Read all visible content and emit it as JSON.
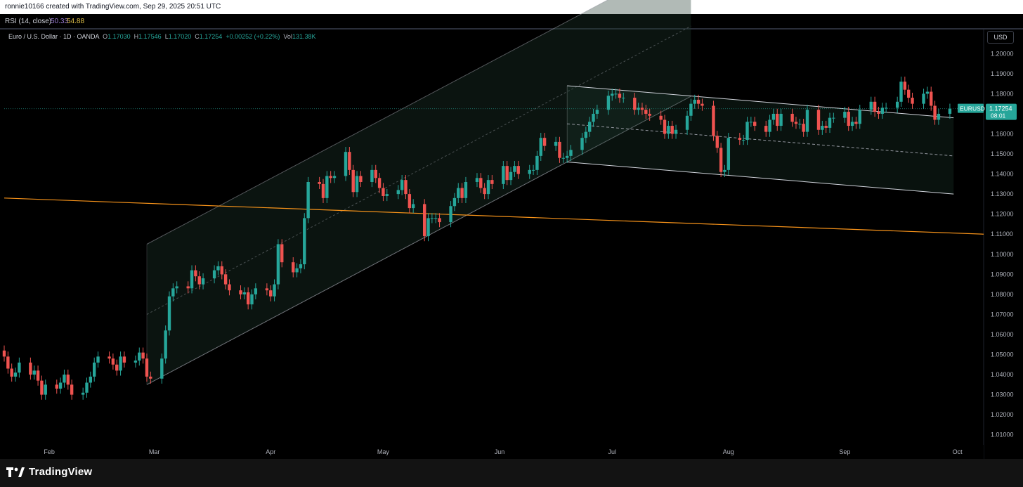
{
  "header": {
    "attribution": "ronnie10166 created with TradingView.com, Sep 29, 2025 20:51 UTC"
  },
  "rsi": {
    "label": "RSI (14, close)",
    "value1": "50.33",
    "value2": "54.88",
    "value1_color": "#9c7dd6",
    "value2_color": "#e2c24a"
  },
  "legend": {
    "symbol": "Euro / U.S. Dollar · 1D · OANDA",
    "o_label": "O",
    "o_value": "1.17030",
    "h_label": "H",
    "h_value": "1.17546",
    "l_label": "L",
    "l_value": "1.17020",
    "c_label": "C",
    "c_value": "1.17254",
    "change": "+0.00252 (+0.22%)",
    "vol_label": "Vol",
    "vol_value": "131.38K"
  },
  "axis": {
    "currency": "USD",
    "symbol_tag": "EURUSD",
    "price_tag": "1.17254",
    "countdown": "08:01"
  },
  "brand": {
    "name": "TradingView"
  },
  "colors": {
    "up": "#26a69a",
    "down": "#ef5350",
    "trendline": "#f7931a",
    "channel": "#9598a1"
  },
  "chart_data": {
    "type": "candlestick",
    "y_axis": {
      "min": 1.005,
      "max": 1.205,
      "ticks": [
        "1.01000",
        "1.02000",
        "1.03000",
        "1.04000",
        "1.05000",
        "1.06000",
        "1.07000",
        "1.08000",
        "1.09000",
        "1.10000",
        "1.11000",
        "1.12000",
        "1.13000",
        "1.14000",
        "1.15000",
        "1.16000",
        "1.17000",
        "1.18000",
        "1.19000",
        "1.20000"
      ]
    },
    "x_axis": {
      "start": "2025-01-20",
      "end": "2025-10-08",
      "ticks": [
        {
          "label": "Feb",
          "date": "2025-02-01"
        },
        {
          "label": "Mar",
          "date": "2025-03-01"
        },
        {
          "label": "Apr",
          "date": "2025-04-01"
        },
        {
          "label": "May",
          "date": "2025-05-01"
        },
        {
          "label": "Jun",
          "date": "2025-06-01"
        },
        {
          "label": "Jul",
          "date": "2025-07-01"
        },
        {
          "label": "Aug",
          "date": "2025-08-01"
        },
        {
          "label": "Sep",
          "date": "2025-09-01"
        },
        {
          "label": "Oct",
          "date": "2025-10-01"
        }
      ]
    },
    "last_close": 1.17254,
    "closes": [
      {
        "date": "2025-01-20",
        "close": 1.049
      },
      {
        "date": "2025-01-21",
        "close": 1.043
      },
      {
        "date": "2025-01-22",
        "close": 1.039
      },
      {
        "date": "2025-01-23",
        "close": 1.041
      },
      {
        "date": "2025-01-24",
        "close": 1.046
      },
      {
        "date": "2025-01-27",
        "close": 1.04
      },
      {
        "date": "2025-01-28",
        "close": 1.042
      },
      {
        "date": "2025-01-29",
        "close": 1.037
      },
      {
        "date": "2025-01-30",
        "close": 1.03
      },
      {
        "date": "2025-01-31",
        "close": 1.035
      },
      {
        "date": "2025-02-03",
        "close": 1.033
      },
      {
        "date": "2025-02-04",
        "close": 1.036
      },
      {
        "date": "2025-02-05",
        "close": 1.04
      },
      {
        "date": "2025-02-06",
        "close": 1.035
      },
      {
        "date": "2025-02-07",
        "close": 1.03
      },
      {
        "date": "2025-02-10",
        "close": 1.031
      },
      {
        "date": "2025-02-11",
        "close": 1.036
      },
      {
        "date": "2025-02-12",
        "close": 1.039
      },
      {
        "date": "2025-02-13",
        "close": 1.046
      },
      {
        "date": "2025-02-14",
        "close": 1.049
      },
      {
        "date": "2025-02-17",
        "close": 1.048
      },
      {
        "date": "2025-02-18",
        "close": 1.045
      },
      {
        "date": "2025-02-19",
        "close": 1.042
      },
      {
        "date": "2025-02-20",
        "close": 1.049
      },
      {
        "date": "2025-02-21",
        "close": 1.046
      },
      {
        "date": "2025-02-24",
        "close": 1.047
      },
      {
        "date": "2025-02-25",
        "close": 1.051
      },
      {
        "date": "2025-02-26",
        "close": 1.048
      },
      {
        "date": "2025-02-27",
        "close": 1.039
      },
      {
        "date": "2025-02-28",
        "close": 1.038
      },
      {
        "date": "2025-03-03",
        "close": 1.048
      },
      {
        "date": "2025-03-04",
        "close": 1.062
      },
      {
        "date": "2025-03-05",
        "close": 1.079
      },
      {
        "date": "2025-03-06",
        "close": 1.083
      },
      {
        "date": "2025-03-07",
        "close": 1.084
      },
      {
        "date": "2025-03-10",
        "close": 1.083
      },
      {
        "date": "2025-03-11",
        "close": 1.092
      },
      {
        "date": "2025-03-12",
        "close": 1.089
      },
      {
        "date": "2025-03-13",
        "close": 1.085
      },
      {
        "date": "2025-03-14",
        "close": 1.088
      },
      {
        "date": "2025-03-17",
        "close": 1.092
      },
      {
        "date": "2025-03-18",
        "close": 1.094
      },
      {
        "date": "2025-03-19",
        "close": 1.09
      },
      {
        "date": "2025-03-20",
        "close": 1.085
      },
      {
        "date": "2025-03-21",
        "close": 1.082
      },
      {
        "date": "2025-03-24",
        "close": 1.08
      },
      {
        "date": "2025-03-25",
        "close": 1.081
      },
      {
        "date": "2025-03-26",
        "close": 1.075
      },
      {
        "date": "2025-03-27",
        "close": 1.08
      },
      {
        "date": "2025-03-28",
        "close": 1.083
      },
      {
        "date": "2025-03-31",
        "close": 1.082
      },
      {
        "date": "2025-04-01",
        "close": 1.079
      },
      {
        "date": "2025-04-02",
        "close": 1.085
      },
      {
        "date": "2025-04-03",
        "close": 1.105
      },
      {
        "date": "2025-04-04",
        "close": 1.096
      },
      {
        "date": "2025-04-07",
        "close": 1.091
      },
      {
        "date": "2025-04-08",
        "close": 1.093
      },
      {
        "date": "2025-04-09",
        "close": 1.095
      },
      {
        "date": "2025-04-10",
        "close": 1.118
      },
      {
        "date": "2025-04-11",
        "close": 1.136
      },
      {
        "date": "2025-04-14",
        "close": 1.135
      },
      {
        "date": "2025-04-15",
        "close": 1.128
      },
      {
        "date": "2025-04-16",
        "close": 1.139
      },
      {
        "date": "2025-04-17",
        "close": 1.138
      },
      {
        "date": "2025-04-18",
        "close": 1.139
      },
      {
        "date": "2025-04-21",
        "close": 1.151
      },
      {
        "date": "2025-04-22",
        "close": 1.142
      },
      {
        "date": "2025-04-23",
        "close": 1.131
      },
      {
        "date": "2025-04-24",
        "close": 1.139
      },
      {
        "date": "2025-04-25",
        "close": 1.136
      },
      {
        "date": "2025-04-28",
        "close": 1.142
      },
      {
        "date": "2025-04-29",
        "close": 1.138
      },
      {
        "date": "2025-04-30",
        "close": 1.133
      },
      {
        "date": "2025-05-01",
        "close": 1.129
      },
      {
        "date": "2025-05-02",
        "close": 1.13
      },
      {
        "date": "2025-05-05",
        "close": 1.132
      },
      {
        "date": "2025-05-06",
        "close": 1.137
      },
      {
        "date": "2025-05-07",
        "close": 1.13
      },
      {
        "date": "2025-05-08",
        "close": 1.123
      },
      {
        "date": "2025-05-09",
        "close": 1.125
      },
      {
        "date": "2025-05-12",
        "close": 1.109
      },
      {
        "date": "2025-05-13",
        "close": 1.118
      },
      {
        "date": "2025-05-14",
        "close": 1.118
      },
      {
        "date": "2025-05-15",
        "close": 1.118
      },
      {
        "date": "2025-05-16",
        "close": 1.116
      },
      {
        "date": "2025-05-19",
        "close": 1.124
      },
      {
        "date": "2025-05-20",
        "close": 1.128
      },
      {
        "date": "2025-05-21",
        "close": 1.133
      },
      {
        "date": "2025-05-22",
        "close": 1.128
      },
      {
        "date": "2025-05-23",
        "close": 1.136
      },
      {
        "date": "2025-05-26",
        "close": 1.138
      },
      {
        "date": "2025-05-27",
        "close": 1.133
      },
      {
        "date": "2025-05-28",
        "close": 1.13
      },
      {
        "date": "2025-05-29",
        "close": 1.137
      },
      {
        "date": "2025-05-30",
        "close": 1.135
      },
      {
        "date": "2025-06-02",
        "close": 1.144
      },
      {
        "date": "2025-06-03",
        "close": 1.137
      },
      {
        "date": "2025-06-04",
        "close": 1.141
      },
      {
        "date": "2025-06-05",
        "close": 1.144
      },
      {
        "date": "2025-06-06",
        "close": 1.14
      },
      {
        "date": "2025-06-09",
        "close": 1.142
      },
      {
        "date": "2025-06-10",
        "close": 1.142
      },
      {
        "date": "2025-06-11",
        "close": 1.149
      },
      {
        "date": "2025-06-12",
        "close": 1.158
      },
      {
        "date": "2025-06-13",
        "close": 1.154
      },
      {
        "date": "2025-06-16",
        "close": 1.156
      },
      {
        "date": "2025-06-17",
        "close": 1.148
      },
      {
        "date": "2025-06-18",
        "close": 1.148
      },
      {
        "date": "2025-06-19",
        "close": 1.149
      },
      {
        "date": "2025-06-20",
        "close": 1.152
      },
      {
        "date": "2025-06-23",
        "close": 1.158
      },
      {
        "date": "2025-06-24",
        "close": 1.161
      },
      {
        "date": "2025-06-25",
        "close": 1.166
      },
      {
        "date": "2025-06-26",
        "close": 1.17
      },
      {
        "date": "2025-06-27",
        "close": 1.172
      },
      {
        "date": "2025-06-30",
        "close": 1.179
      },
      {
        "date": "2025-07-01",
        "close": 1.18
      },
      {
        "date": "2025-07-02",
        "close": 1.18
      },
      {
        "date": "2025-07-03",
        "close": 1.178
      },
      {
        "date": "2025-07-04",
        "close": 1.178
      },
      {
        "date": "2025-07-07",
        "close": 1.172
      },
      {
        "date": "2025-07-08",
        "close": 1.173
      },
      {
        "date": "2025-07-09",
        "close": 1.172
      },
      {
        "date": "2025-07-10",
        "close": 1.17
      },
      {
        "date": "2025-07-11",
        "close": 1.169
      },
      {
        "date": "2025-07-14",
        "close": 1.167
      },
      {
        "date": "2025-07-15",
        "close": 1.16
      },
      {
        "date": "2025-07-16",
        "close": 1.164
      },
      {
        "date": "2025-07-17",
        "close": 1.16
      },
      {
        "date": "2025-07-18",
        "close": 1.162
      },
      {
        "date": "2025-07-21",
        "close": 1.169
      },
      {
        "date": "2025-07-22",
        "close": 1.175
      },
      {
        "date": "2025-07-23",
        "close": 1.177
      },
      {
        "date": "2025-07-24",
        "close": 1.175
      },
      {
        "date": "2025-07-25",
        "close": 1.174
      },
      {
        "date": "2025-07-28",
        "close": 1.159
      },
      {
        "date": "2025-07-29",
        "close": 1.153
      },
      {
        "date": "2025-07-30",
        "close": 1.141
      },
      {
        "date": "2025-07-31",
        "close": 1.142
      },
      {
        "date": "2025-08-01",
        "close": 1.158
      },
      {
        "date": "2025-08-04",
        "close": 1.157
      },
      {
        "date": "2025-08-05",
        "close": 1.157
      },
      {
        "date": "2025-08-06",
        "close": 1.166
      },
      {
        "date": "2025-08-07",
        "close": 1.166
      },
      {
        "date": "2025-08-08",
        "close": 1.164
      },
      {
        "date": "2025-08-11",
        "close": 1.161
      },
      {
        "date": "2025-08-12",
        "close": 1.167
      },
      {
        "date": "2025-08-13",
        "close": 1.17
      },
      {
        "date": "2025-08-14",
        "close": 1.164
      },
      {
        "date": "2025-08-15",
        "close": 1.17
      },
      {
        "date": "2025-08-18",
        "close": 1.166
      },
      {
        "date": "2025-08-19",
        "close": 1.165
      },
      {
        "date": "2025-08-20",
        "close": 1.165
      },
      {
        "date": "2025-08-21",
        "close": 1.161
      },
      {
        "date": "2025-08-22",
        "close": 1.172
      },
      {
        "date": "2025-08-25",
        "close": 1.162
      },
      {
        "date": "2025-08-26",
        "close": 1.164
      },
      {
        "date": "2025-08-27",
        "close": 1.163
      },
      {
        "date": "2025-08-28",
        "close": 1.168
      },
      {
        "date": "2025-08-29",
        "close": 1.168
      },
      {
        "date": "2025-09-01",
        "close": 1.171
      },
      {
        "date": "2025-09-02",
        "close": 1.164
      },
      {
        "date": "2025-09-03",
        "close": 1.166
      },
      {
        "date": "2025-09-04",
        "close": 1.165
      },
      {
        "date": "2025-09-05",
        "close": 1.172
      },
      {
        "date": "2025-09-08",
        "close": 1.176
      },
      {
        "date": "2025-09-09",
        "close": 1.171
      },
      {
        "date": "2025-09-10",
        "close": 1.17
      },
      {
        "date": "2025-09-11",
        "close": 1.173
      },
      {
        "date": "2025-09-12",
        "close": 1.173
      },
      {
        "date": "2025-09-15",
        "close": 1.176
      },
      {
        "date": "2025-09-16",
        "close": 1.186
      },
      {
        "date": "2025-09-17",
        "close": 1.182
      },
      {
        "date": "2025-09-18",
        "close": 1.178
      },
      {
        "date": "2025-09-19",
        "close": 1.175
      },
      {
        "date": "2025-09-22",
        "close": 1.18
      },
      {
        "date": "2025-09-23",
        "close": 1.181
      },
      {
        "date": "2025-09-24",
        "close": 1.174
      },
      {
        "date": "2025-09-25",
        "close": 1.167
      },
      {
        "date": "2025-09-26",
        "close": 1.17
      },
      {
        "date": "2025-09-29",
        "close": 1.17254
      }
    ],
    "drawings": {
      "rising_channel": {
        "lower": [
          {
            "date": "2025-02-27",
            "price": 1.035
          },
          {
            "date": "2025-06-19",
            "price": 1.146
          }
        ],
        "upper": [
          {
            "date": "2025-02-27",
            "price": 1.105
          },
          {
            "date": "2025-06-19",
            "price": 1.216
          }
        ],
        "mid": [
          {
            "date": "2025-02-27",
            "price": 1.07
          },
          {
            "date": "2025-06-19",
            "price": 1.181
          }
        ],
        "extend_to": "2025-07-22",
        "box_end": "2025-07-26"
      },
      "falling_channel": {
        "upper": [
          {
            "date": "2025-06-19",
            "price": 1.184
          },
          {
            "date": "2025-09-30",
            "price": 1.168
          }
        ],
        "mid": [
          {
            "date": "2025-06-19",
            "price": 1.165
          },
          {
            "date": "2025-09-30",
            "price": 1.149
          }
        ],
        "lower": [
          {
            "date": "2025-06-19",
            "price": 1.146
          },
          {
            "date": "2025-09-30",
            "price": 1.13
          }
        ]
      },
      "orange_trendline": [
        {
          "date": "2025-01-20",
          "price": 1.128
        },
        {
          "date": "2025-10-08",
          "price": 1.11
        }
      ]
    }
  }
}
